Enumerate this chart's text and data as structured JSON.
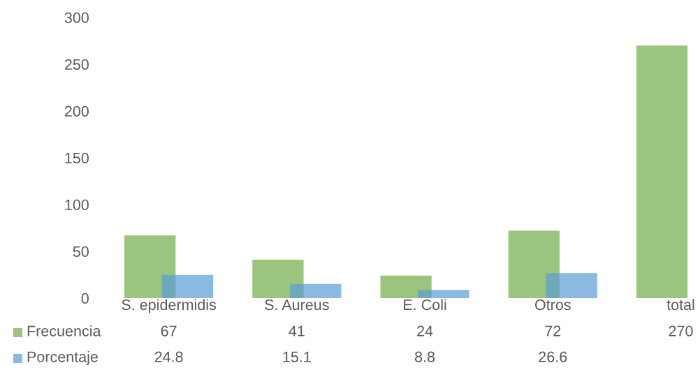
{
  "chart_data": {
    "type": "bar",
    "categories": [
      "S. epidermidis",
      "S. Aureus",
      "E. Coli",
      "Otros",
      "total"
    ],
    "series": [
      {
        "name": "Frecuencia",
        "color": "#9bc57e",
        "values": [
          67,
          41,
          24,
          72,
          270
        ]
      },
      {
        "name": "Porcentaje",
        "color": "#8cb9e2",
        "values": [
          24.8,
          15.1,
          8.8,
          26.6,
          null
        ]
      }
    ],
    "ylim": [
      0,
      300
    ],
    "yticks": [
      0,
      50,
      100,
      150,
      200,
      250,
      300
    ],
    "grid": false,
    "legend": "bottom",
    "data_labels": true
  }
}
